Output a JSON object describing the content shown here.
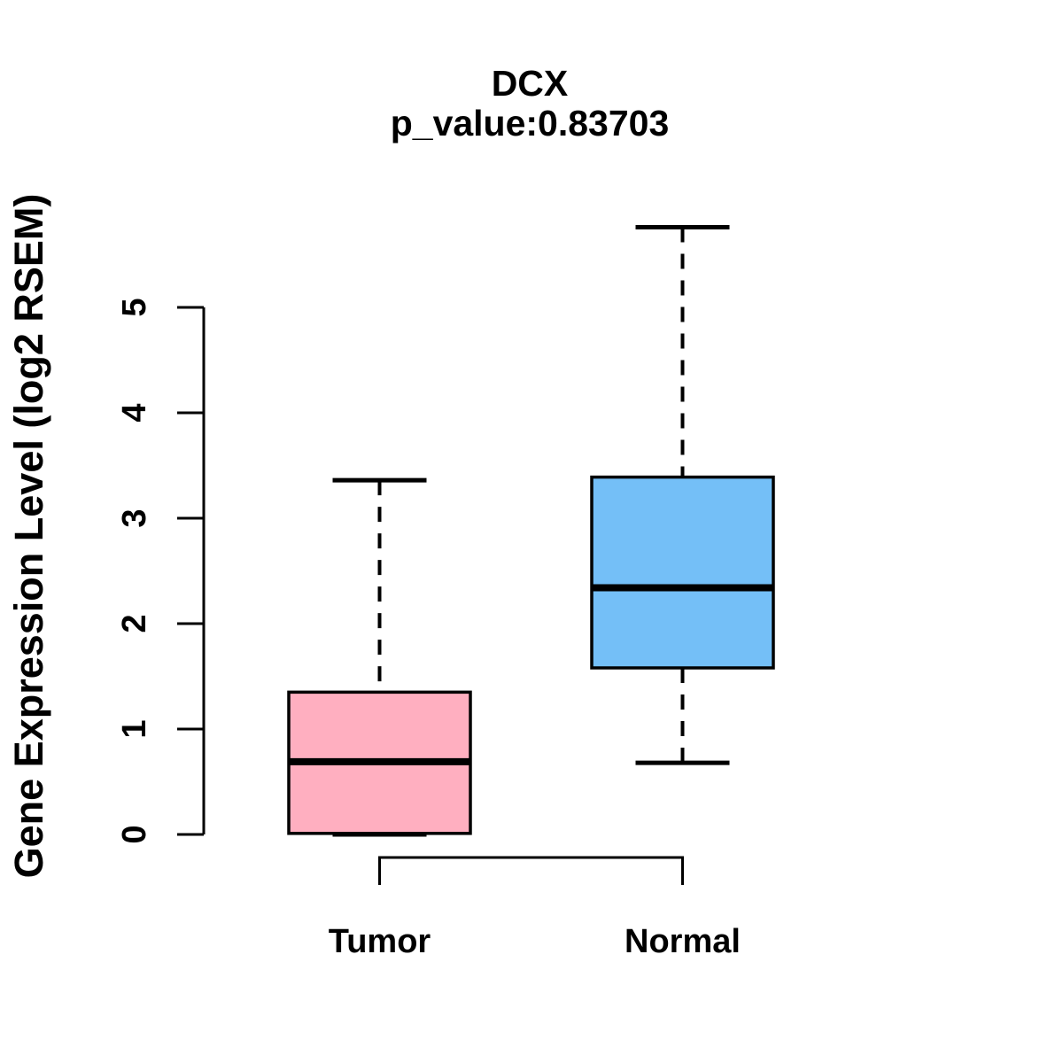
{
  "chart_data": {
    "type": "boxplot",
    "title": "DCX",
    "subtitle": "p_value:0.83703",
    "ylabel": "Gene Expression Level (log2 RSEM)",
    "xlabel": "",
    "categories": [
      "Tumor",
      "Normal"
    ],
    "series": [
      {
        "name": "Tumor",
        "color": "#FFAFC0",
        "stats": {
          "whisker_low": 0.0,
          "q1": 0.01,
          "median": 0.69,
          "q3": 1.35,
          "whisker_high": 3.36
        }
      },
      {
        "name": "Normal",
        "color": "#74BFF7",
        "stats": {
          "whisker_low": 0.68,
          "q1": 1.58,
          "median": 2.34,
          "q3": 3.39,
          "whisker_high": 5.76
        }
      }
    ],
    "yticks": [
      0,
      1,
      2,
      3,
      4,
      5
    ],
    "ylim": [
      0,
      5.8
    ],
    "grid": false,
    "legend": "none",
    "colors": {
      "box_border": "#000000",
      "median_line": "#000000",
      "whisker": "#000000",
      "axis": "#000000",
      "background": "#FFFFFF"
    }
  }
}
